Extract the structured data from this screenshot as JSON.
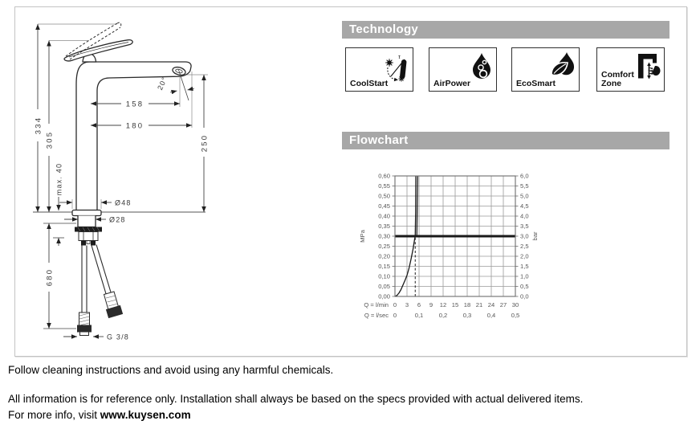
{
  "panel": {
    "technology": {
      "header": "Technology",
      "badges": [
        {
          "label": "CoolStart",
          "icon": "coolstart-icon"
        },
        {
          "label": "AirPower",
          "icon": "airpower-icon"
        },
        {
          "label": "EcoSmart",
          "icon": "ecosmart-icon"
        },
        {
          "label": "Comfort Zone",
          "icon": "comfortzone-icon"
        }
      ]
    },
    "flowchart": {
      "header": "Flowchart"
    }
  },
  "drawing": {
    "description": "Tall single-lever basin mixer technical drawing",
    "dimensions": {
      "total_height": "334",
      "height_to_lever": "305",
      "spout_height": "250",
      "reach_to_aerator": "158",
      "total_reach": "180",
      "outlet_angle": "20°",
      "max_mounting_thickness": "max. 40",
      "base_diameter": "Ø48",
      "shank_diameter": "Ø28",
      "hose_length": "680",
      "connection_thread": "G 3/8"
    }
  },
  "chart_data": {
    "type": "line",
    "title": "Flowchart",
    "x_axis": {
      "label": "Q = l/min",
      "range": [
        0,
        30
      ],
      "ticks": [
        0,
        3,
        6,
        9,
        12,
        15,
        18,
        21,
        24,
        27,
        30
      ]
    },
    "x_axis2": {
      "label": "Q = l/sec",
      "ticks": [
        {
          "x": 0,
          "label": "0"
        },
        {
          "x": 6,
          "label": "0,1"
        },
        {
          "x": 12,
          "label": "0,2"
        },
        {
          "x": 18,
          "label": "0,3"
        },
        {
          "x": 24,
          "label": "0,4"
        },
        {
          "x": 30,
          "label": "0,5"
        }
      ]
    },
    "y_axis_left": {
      "label": "MPa",
      "range": [
        0,
        0.6
      ],
      "ticks": [
        "0,00",
        "0,05",
        "0,10",
        "0,15",
        "0,20",
        "0,25",
        "0,30",
        "0,35",
        "0,40",
        "0,45",
        "0,50",
        "0,55",
        "0,60"
      ]
    },
    "y_axis_right": {
      "label": "bar",
      "ticks": [
        "0,0",
        "0,5",
        "1,0",
        "1,5",
        "2,0",
        "2,5",
        "3,0",
        "3,5",
        "4,0",
        "4,5",
        "5,0",
        "5,5",
        "6,0"
      ]
    },
    "grid": true,
    "series": [
      {
        "name": "flow-curve",
        "type": "line",
        "points": [
          [
            0,
            0
          ],
          [
            0.5,
            0.005
          ],
          [
            1,
            0.017
          ],
          [
            1.5,
            0.034
          ],
          [
            2,
            0.057
          ],
          [
            2.5,
            0.08
          ],
          [
            3,
            0.105
          ],
          [
            3.5,
            0.14
          ],
          [
            4,
            0.185
          ],
          [
            4.5,
            0.235
          ],
          [
            4.9,
            0.285
          ],
          [
            5.05,
            0.3
          ],
          [
            5.15,
            0.42
          ],
          [
            5.2,
            0.6
          ]
        ]
      },
      {
        "name": "flow-curve-upper",
        "type": "line",
        "points": [
          [
            5.45,
            0.295
          ],
          [
            5.65,
            0.6
          ]
        ]
      },
      {
        "name": "pressure-reference-line",
        "type": "hline",
        "y": 0.3
      },
      {
        "name": "recommended-flow-marker",
        "type": "vline-dashed",
        "x": 5.05,
        "y_from": 0,
        "y_to": 0.295
      }
    ]
  },
  "footer": {
    "line1": "Follow cleaning instructions and avoid using any harmful chemicals.",
    "line2": "All information is for reference only. Installation shall always be based on the specs provided with actual delivered items.",
    "line3_prefix": "For more info, visit ",
    "website": "www.kuysen.com"
  },
  "colors": {
    "header_bar": "#a7a7a7",
    "drawing_line": "#2b2b2b",
    "grid_line": "#9a9a9a",
    "chart_line": "#1a1a1a",
    "panel_border": "#c3c3c3"
  }
}
